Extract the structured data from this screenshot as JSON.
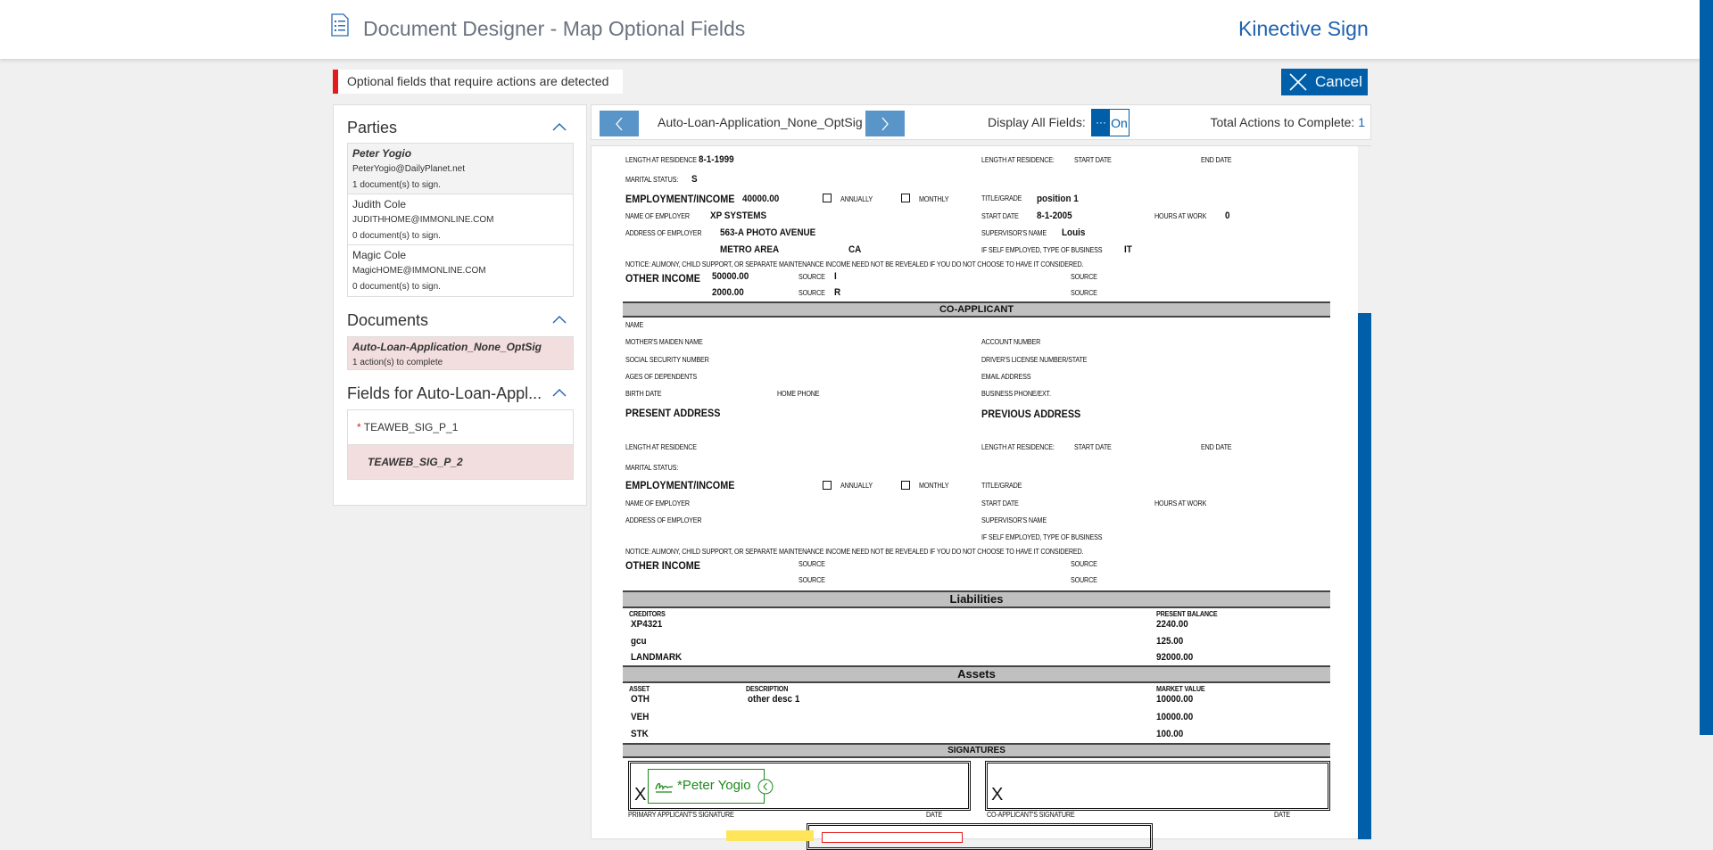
{
  "header": {
    "title": "Document Designer - Map Optional Fields",
    "brand": "Kinective Sign",
    "icon": "document-list-icon"
  },
  "alert": {
    "text": "Optional fields that require actions are detected",
    "color": "#e41b1b"
  },
  "cancel_label": "Cancel",
  "sidebar": {
    "parties": {
      "title": "Parties",
      "items": [
        {
          "name": "Peter Yogio",
          "email": "PeterYogio@DailyPlanet.net",
          "docs": "1 document(s) to sign."
        },
        {
          "name": "Judith Cole",
          "email": "JUDITHHOME@IMMONLINE.COM",
          "docs": "0 document(s) to sign."
        },
        {
          "name": "Magic Cole",
          "email": "MagicHOME@IMMONLINE.COM",
          "docs": "0 document(s) to sign."
        }
      ]
    },
    "documents": {
      "title": "Documents",
      "items": [
        {
          "name": "Auto-Loan-Application_None_OptSig",
          "actions": "1 action(s) to complete"
        }
      ]
    },
    "fields": {
      "title": "Fields for Auto-Loan-Appl...",
      "items": [
        {
          "label": "TEAWEB_SIG_P_1",
          "required": "*"
        },
        {
          "label": "TEAWEB_SIG_P_2"
        }
      ]
    }
  },
  "toolbar": {
    "doc_name": "Auto-Loan-Application_None_OptSig",
    "display_all_label": "Display All Fields:",
    "toggle_dots": "···",
    "toggle_label": "On",
    "total_label": "Total Actions to Complete:",
    "total_value": "1"
  },
  "doc": {
    "applicant": {
      "length_label": "LENGTH AT RESIDENCE",
      "length_value": "8-1-1999",
      "prev_length_label": "LENGTH AT RESIDENCE:",
      "start_date_label": "START DATE",
      "end_date_label": "END DATE",
      "marital_label": "MARITAL STATUS:",
      "marital_value": "S",
      "employment_label": "EMPLOYMENT/INCOME",
      "employment_value": "40000.00",
      "annually": "ANNUALLY",
      "monthly": "MONTHLY",
      "title_label": "TITLE/GRADE",
      "title_value": "position 1",
      "employer_label": "NAME OF EMPLOYER",
      "employer_value": "XP SYSTEMS",
      "start_label": "START DATE",
      "start_value": "8-1-2005",
      "hours_label": "HOURS AT WORK",
      "hours_value": "0",
      "address_label": "ADDRESS OF EMPLOYER",
      "address_value": "563-A PHOTO AVENUE",
      "supervisor_label": "SUPERVISOR'S NAME",
      "supervisor_value": "Louis",
      "city": "METRO AREA",
      "state": "CA",
      "self_label": "IF SELF EMPLOYED, TYPE OF BUSINESS",
      "self_value": "IT",
      "notice": "NOTICE: ALIMONY, CHILD SUPPORT, OR SEPARATE MAINTENANCE INCOME NEED NOT BE REVEALED IF YOU DO NOT CHOOSE TO HAVE IT CONSIDERED.",
      "other_income_label": "OTHER INCOME",
      "other_income_1": "50000.00",
      "other_income_2": "2000.00",
      "source_label": "SOURCE",
      "source_1": "I",
      "source_2": "R"
    },
    "co_applicant": {
      "title": "CO-APPLICANT",
      "name": "NAME",
      "maiden": "MOTHER'S MAIDEN NAME",
      "account": "ACCOUNT NUMBER",
      "ssn": "SOCIAL SECURITY NUMBER",
      "license": "DRIVER'S LICENSE NUMBER/STATE",
      "dependents": "AGES OF DEPENDENTS",
      "email": "EMAIL ADDRESS",
      "birth": "BIRTH DATE",
      "home_phone": "HOME PHONE",
      "business_phone": "BUSINESS PHONE/EXT.",
      "present": "PRESENT ADDRESS",
      "previous": "PREVIOUS ADDRESS",
      "length": "LENGTH AT RESIDENCE",
      "prev_length": "LENGTH AT RESIDENCE:",
      "start_date": "START DATE",
      "end_date": "END DATE",
      "marital": "MARITAL STATUS:",
      "employment": "EMPLOYMENT/INCOME",
      "annually": "ANNUALLY",
      "monthly": "MONTHLY",
      "title_grade": "TITLE/GRADE",
      "employer": "NAME OF EMPLOYER",
      "emp_start": "START DATE",
      "hours": "HOURS AT WORK",
      "address": "ADDRESS OF EMPLOYER",
      "supervisor": "SUPERVISOR'S NAME",
      "self": "IF SELF EMPLOYED, TYPE OF BUSINESS",
      "notice": "NOTICE: ALIMONY, CHILD SUPPORT, OR SEPARATE MAINTENANCE INCOME NEED NOT BE REVEALED IF YOU DO NOT CHOOSE TO HAVE IT CONSIDERED.",
      "other_income": "OTHER INCOME",
      "source": "SOURCE"
    },
    "liabilities": {
      "title": "Liabilities",
      "col1": "CREDITORS",
      "col2": "PRESENT BALANCE",
      "rows": [
        {
          "creditor": "XP4321",
          "balance": "2240.00"
        },
        {
          "creditor": "gcu",
          "balance": "125.00"
        },
        {
          "creditor": "LANDMARK",
          "balance": "92000.00"
        }
      ]
    },
    "assets": {
      "title": "Assets",
      "col1": "ASSET",
      "col2": "DESCRIPTION",
      "col3": "MARKET VALUE",
      "rows": [
        {
          "asset": "OTH",
          "desc": "other desc 1",
          "value": "10000.00"
        },
        {
          "asset": "VEH",
          "desc": "",
          "value": "10000.00"
        },
        {
          "asset": "STK",
          "desc": "",
          "value": "100.00"
        }
      ]
    },
    "signatures": {
      "title": "SIGNATURES",
      "x": "X",
      "field_name": "Peter Yogio",
      "field_required": "*",
      "primary_label": "PRIMARY APPLICANT'S SIGNATURE",
      "date_label": "DATE",
      "co_label": "CO-APPLICANT'S SIGNATURE",
      "field_color": "#1e8a1e"
    }
  }
}
